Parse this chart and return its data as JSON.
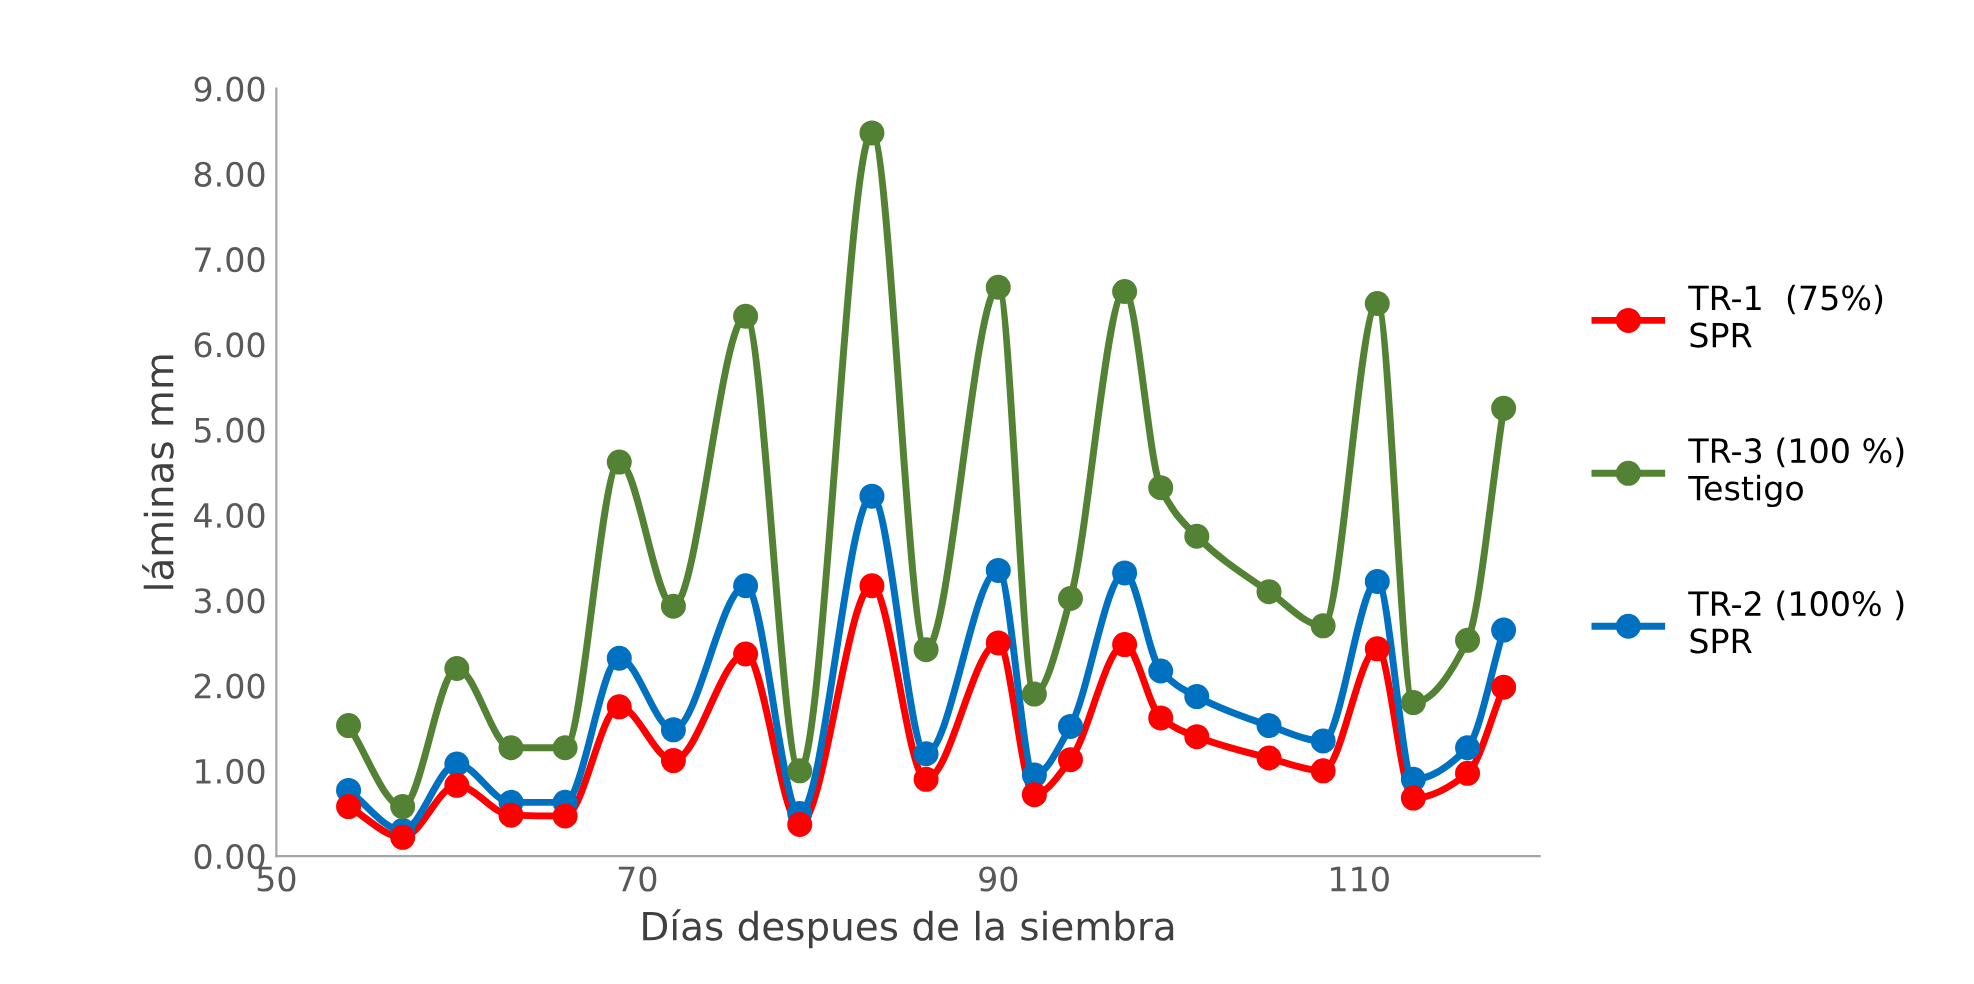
{
  "chart_data": {
    "type": "line",
    "xlabel": "Días despues de la siembra",
    "ylabel": "láminas mm",
    "x": [
      54,
      57,
      60,
      63,
      66,
      69,
      72,
      76,
      79,
      83,
      86,
      90,
      92,
      94,
      97,
      99,
      101,
      105,
      108,
      111,
      113,
      116,
      118
    ],
    "series": [
      {
        "name": "TR-1  (75%)\nSPR",
        "color": "#ff0000",
        "values": [
          0.58,
          0.22,
          0.83,
          0.48,
          0.47,
          1.75,
          1.12,
          2.37,
          0.37,
          3.17,
          0.9,
          2.5,
          0.72,
          1.13,
          2.48,
          1.62,
          1.4,
          1.15,
          1.0,
          2.43,
          0.68,
          0.97,
          1.98
        ]
      },
      {
        "name": "TR-3 (100 %)\nTestigo",
        "color": "#548235",
        "values": [
          1.53,
          0.58,
          2.2,
          1.27,
          1.27,
          4.62,
          2.93,
          6.33,
          1.0,
          8.48,
          2.42,
          6.67,
          1.9,
          3.02,
          6.62,
          4.32,
          3.75,
          3.1,
          2.7,
          6.48,
          1.8,
          2.53,
          5.25
        ]
      },
      {
        "name": "TR-2 (100% )\nSPR",
        "color": "#0070c0",
        "values": [
          0.77,
          0.3,
          1.08,
          0.63,
          0.63,
          2.32,
          1.48,
          3.17,
          0.5,
          4.22,
          1.2,
          3.35,
          0.95,
          1.52,
          3.32,
          2.17,
          1.87,
          1.53,
          1.35,
          3.22,
          0.9,
          1.27,
          2.65
        ]
      }
    ],
    "xlim": [
      50,
      120
    ],
    "xticks": [
      50,
      70,
      90,
      110
    ],
    "ylim": [
      0,
      9
    ],
    "yticks": [
      {
        "value": 0,
        "label": "0.00"
      },
      {
        "value": 1,
        "label": "1.00"
      },
      {
        "value": 2,
        "label": "2.00"
      },
      {
        "value": 3,
        "label": "3.00"
      },
      {
        "value": 4,
        "label": "4.00"
      },
      {
        "value": 5,
        "label": "5.00"
      },
      {
        "value": 6,
        "label": "6.00"
      },
      {
        "value": 7,
        "label": "7.00"
      },
      {
        "value": 8,
        "label": "8.00"
      },
      {
        "value": 9,
        "label": "9.00"
      }
    ],
    "marker": "circle",
    "line_style": "solid",
    "legend": "right",
    "grid": false
  }
}
